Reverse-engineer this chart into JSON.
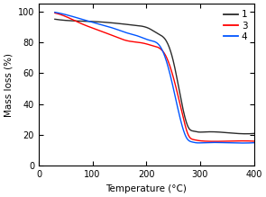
{
  "xlabel": "Temperature (°C)",
  "ylabel": "Mass loss (%)",
  "xlim": [
    0,
    400
  ],
  "ylim": [
    0,
    105
  ],
  "yticks": [
    0,
    20,
    40,
    60,
    80,
    100
  ],
  "xticks": [
    0,
    100,
    200,
    300,
    400
  ],
  "legend_labels": [
    "1",
    "3",
    "4"
  ],
  "legend_colors": [
    "#2b2b2b",
    "#ff0000",
    "#0055ff"
  ],
  "curve1_x": [
    30,
    60,
    100,
    140,
    180,
    205,
    215,
    225,
    235,
    250,
    265,
    278,
    288,
    295,
    310,
    350,
    400
  ],
  "curve1_y": [
    95,
    94,
    93.5,
    92.5,
    91,
    89,
    87,
    85,
    82,
    68,
    42,
    25,
    22.5,
    22,
    22,
    21.5,
    21
  ],
  "curve2_x": [
    30,
    55,
    80,
    110,
    140,
    165,
    185,
    200,
    210,
    220,
    235,
    252,
    268,
    278,
    288,
    295,
    310,
    350,
    400
  ],
  "curve2_y": [
    99,
    96,
    92,
    88,
    84,
    81,
    80,
    79,
    78,
    77,
    72,
    55,
    32,
    20,
    17,
    16.5,
    16,
    16,
    16
  ],
  "curve3_x": [
    30,
    55,
    80,
    110,
    140,
    165,
    185,
    200,
    210,
    218,
    228,
    245,
    262,
    275,
    285,
    292,
    305,
    350,
    400
  ],
  "curve3_y": [
    99.5,
    97.5,
    95,
    92,
    89,
    86,
    84,
    82,
    81,
    80,
    76,
    58,
    32,
    18,
    15.5,
    15,
    15,
    15,
    15
  ],
  "linewidth": 1.0
}
